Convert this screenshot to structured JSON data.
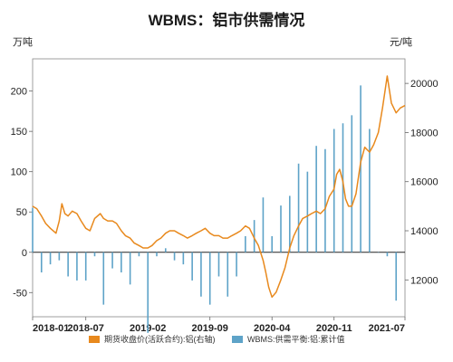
{
  "chart_data": {
    "type": "bar+line",
    "title": "WBMS：铝市供需情况",
    "left_unit": "万吨",
    "right_unit": "元/吨",
    "left_axis": {
      "ylim": [
        -80,
        240
      ],
      "ticks": [
        200,
        150,
        100,
        50,
        0,
        -50
      ]
    },
    "right_axis": {
      "ylim": [
        10500,
        21000
      ],
      "ticks": [
        20000,
        18000,
        16000,
        14000,
        12000
      ]
    },
    "x_range": [
      "2018-01",
      "2021-07"
    ],
    "x_ticks": [
      "2018-01",
      "2018-07",
      "2019-02",
      "2019-09",
      "2020-04",
      "2020-11",
      "2021-07"
    ],
    "legend_position": "bottom",
    "series": [
      {
        "name": "期货收盘价(活跃合约):铝(右轴)",
        "kind": "line",
        "axis": "right",
        "color": "#E8891D",
        "points": [
          [
            "2018-01",
            15000
          ],
          [
            "2018-01-15",
            14900
          ],
          [
            "2018-02",
            14600
          ],
          [
            "2018-02-15",
            14300
          ],
          [
            "2018-03",
            14100
          ],
          [
            "2018-03-20",
            13900
          ],
          [
            "2018-04",
            14400
          ],
          [
            "2018-04-10",
            15100
          ],
          [
            "2018-04-20",
            14700
          ],
          [
            "2018-05",
            14600
          ],
          [
            "2018-05-15",
            14800
          ],
          [
            "2018-06",
            14700
          ],
          [
            "2018-06-15",
            14400
          ],
          [
            "2018-07",
            14100
          ],
          [
            "2018-07-15",
            14000
          ],
          [
            "2018-08",
            14500
          ],
          [
            "2018-08-20",
            14700
          ],
          [
            "2018-09",
            14500
          ],
          [
            "2018-09-15",
            14400
          ],
          [
            "2018-10",
            14400
          ],
          [
            "2018-10-15",
            14300
          ],
          [
            "2018-11",
            14000
          ],
          [
            "2018-11-15",
            13800
          ],
          [
            "2018-12",
            13700
          ],
          [
            "2018-12-15",
            13500
          ],
          [
            "2019-01",
            13400
          ],
          [
            "2019-01-15",
            13300
          ],
          [
            "2019-02",
            13300
          ],
          [
            "2019-02-15",
            13400
          ],
          [
            "2019-03",
            13600
          ],
          [
            "2019-03-15",
            13700
          ],
          [
            "2019-04",
            13900
          ],
          [
            "2019-04-15",
            14000
          ],
          [
            "2019-05",
            14000
          ],
          [
            "2019-05-15",
            13900
          ],
          [
            "2019-06",
            13800
          ],
          [
            "2019-06-15",
            13700
          ],
          [
            "2019-07",
            13800
          ],
          [
            "2019-07-15",
            13900
          ],
          [
            "2019-08",
            14000
          ],
          [
            "2019-08-15",
            14100
          ],
          [
            "2019-09",
            13900
          ],
          [
            "2019-09-15",
            13800
          ],
          [
            "2019-10",
            13800
          ],
          [
            "2019-10-15",
            13700
          ],
          [
            "2019-11",
            13700
          ],
          [
            "2019-11-15",
            13800
          ],
          [
            "2019-12",
            13900
          ],
          [
            "2019-12-15",
            14000
          ],
          [
            "2020-01",
            14200
          ],
          [
            "2020-01-15",
            14100
          ],
          [
            "2020-02",
            13700
          ],
          [
            "2020-02-15",
            13400
          ],
          [
            "2020-03",
            12800
          ],
          [
            "2020-03-10",
            12300
          ],
          [
            "2020-03-20",
            11700
          ],
          [
            "2020-04",
            11300
          ],
          [
            "2020-04-15",
            11500
          ],
          [
            "2020-05",
            12000
          ],
          [
            "2020-05-15",
            12500
          ],
          [
            "2020-06",
            13300
          ],
          [
            "2020-06-15",
            13800
          ],
          [
            "2020-07",
            14200
          ],
          [
            "2020-07-15",
            14500
          ],
          [
            "2020-08",
            14600
          ],
          [
            "2020-08-15",
            14700
          ],
          [
            "2020-09",
            14800
          ],
          [
            "2020-09-15",
            14700
          ],
          [
            "2020-10",
            14900
          ],
          [
            "2020-10-15",
            15400
          ],
          [
            "2020-11",
            15700
          ],
          [
            "2020-11-10",
            16300
          ],
          [
            "2020-11-20",
            16500
          ],
          [
            "2020-12",
            16000
          ],
          [
            "2020-12-10",
            15300
          ],
          [
            "2020-12-20",
            15000
          ],
          [
            "2021-01",
            15000
          ],
          [
            "2021-01-15",
            15500
          ],
          [
            "2021-02",
            16800
          ],
          [
            "2021-02-15",
            17400
          ],
          [
            "2021-03",
            17200
          ],
          [
            "2021-03-15",
            17500
          ],
          [
            "2021-04",
            18000
          ],
          [
            "2021-04-15",
            19000
          ],
          [
            "2021-05",
            20300
          ],
          [
            "2021-05-15",
            19200
          ],
          [
            "2021-06",
            18800
          ],
          [
            "2021-06-15",
            19000
          ],
          [
            "2021-07",
            19100
          ],
          [
            "2021-07-15",
            19400
          ],
          [
            "2021-08",
            19600
          ],
          [
            "2021-08-15",
            19900
          ]
        ]
      },
      {
        "name": "WBMS:供需平衡:铝:累计值",
        "kind": "bar",
        "axis": "left",
        "color": "#5EA3C8",
        "points": [
          [
            "2018-01",
            55
          ],
          [
            "2018-02",
            -25
          ],
          [
            "2018-03",
            -15
          ],
          [
            "2018-04",
            -10
          ],
          [
            "2018-05",
            -30
          ],
          [
            "2018-06",
            -35
          ],
          [
            "2018-07",
            -35
          ],
          [
            "2018-08",
            -5
          ],
          [
            "2018-09",
            -65
          ],
          [
            "2018-10",
            -20
          ],
          [
            "2018-11",
            -25
          ],
          [
            "2018-12",
            -40
          ],
          [
            "2019-01",
            -5
          ],
          [
            "2019-02",
            -100
          ],
          [
            "2019-03",
            -5
          ],
          [
            "2019-04",
            5
          ],
          [
            "2019-05",
            -10
          ],
          [
            "2019-06",
            -15
          ],
          [
            "2019-07",
            -35
          ],
          [
            "2019-08",
            -55
          ],
          [
            "2019-09",
            -65
          ],
          [
            "2019-10",
            -30
          ],
          [
            "2019-11",
            -55
          ],
          [
            "2019-12",
            -30
          ],
          [
            "2020-01",
            20
          ],
          [
            "2020-02",
            40
          ],
          [
            "2020-03",
            68
          ],
          [
            "2020-04",
            20
          ],
          [
            "2020-05",
            58
          ],
          [
            "2020-06",
            70
          ],
          [
            "2020-07",
            110
          ],
          [
            "2020-08",
            100
          ],
          [
            "2020-09",
            132
          ],
          [
            "2020-10",
            128
          ],
          [
            "2020-11",
            153
          ],
          [
            "2020-12",
            160
          ],
          [
            "2021-01",
            170
          ],
          [
            "2021-02",
            207
          ],
          [
            "2021-03",
            153
          ],
          [
            "2021-04",
            0
          ],
          [
            "2021-05",
            -5
          ],
          [
            "2021-06",
            -60
          ]
        ]
      }
    ]
  }
}
